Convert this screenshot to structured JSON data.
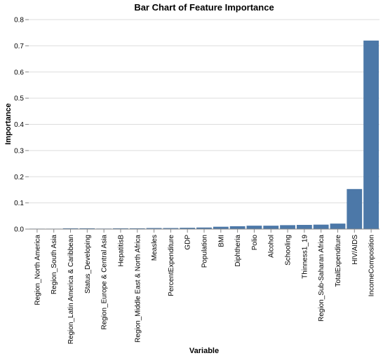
{
  "chart_data": {
    "type": "bar",
    "title": "Bar Chart of Feature Importance",
    "xlabel": "Variable",
    "ylabel": "Importance",
    "ylim": [
      0,
      0.8
    ],
    "yticks": [
      0,
      0.1,
      0.2,
      0.3,
      0.4,
      0.5,
      0.6,
      0.7,
      0.8
    ],
    "ytick_labels": [
      "0.0",
      "0.1",
      "0.2",
      "0.3",
      "0.4",
      "0.5",
      "0.6",
      "0.7",
      "0.8"
    ],
    "grid": true,
    "bar_color": "#4c78a8",
    "categories": [
      "Region_North America",
      "Region_South Asia",
      "Region_Latin America & Caribbean",
      "Status_Developing",
      "Region_Europe & Central Asia",
      "HepatitisB",
      "Region_Middle East & North Africa",
      "Measles",
      "PercentExpenditure",
      "GDP",
      "Population",
      "BMI",
      "Diphtheria",
      "Polio",
      "Alcohol",
      "Schooling",
      "Thinness1_19",
      "Region_Sub-Saharan Africa",
      "TotalExpenditure",
      "HIV/AIDS",
      "IncomeComposition"
    ],
    "values": [
      0.0005,
      0.001,
      0.003,
      0.003,
      0.002,
      0.003,
      0.003,
      0.004,
      0.004,
      0.005,
      0.006,
      0.009,
      0.011,
      0.013,
      0.013,
      0.015,
      0.016,
      0.017,
      0.021,
      0.153,
      0.72
    ]
  }
}
